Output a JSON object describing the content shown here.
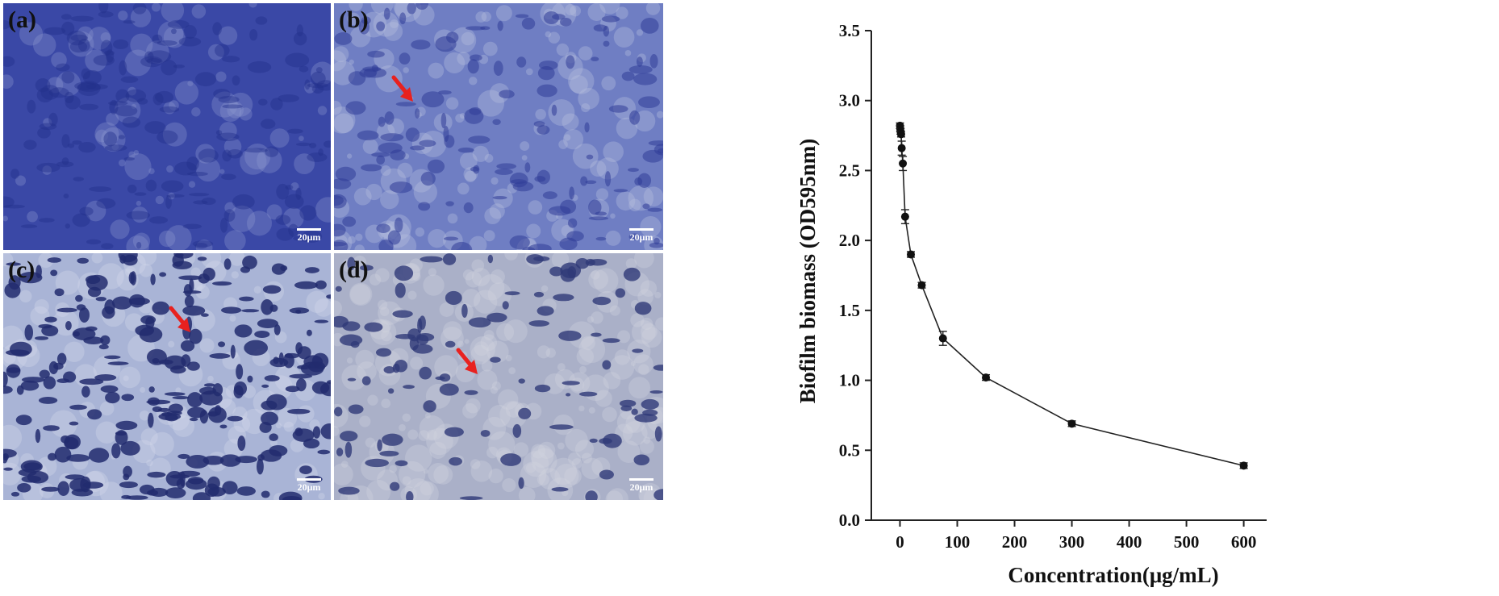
{
  "panels": [
    {
      "label": "(a)",
      "scale": "20μm",
      "base": "#3a48a6",
      "blob": "#24308c",
      "light": "#8c97cf",
      "arrow": false
    },
    {
      "label": "(b)",
      "scale": "20μm",
      "base": "#6f7ec3",
      "blob": "#2f3d98",
      "light": "#b9c2e0",
      "arrow": true
    },
    {
      "label": "(c)",
      "scale": "20μm",
      "base": "#a9b4d6",
      "blob": "#222c6e",
      "light": "#d4d9ea",
      "arrow": true
    },
    {
      "label": "(d)",
      "scale": "20μm",
      "base": "#aab0c8",
      "blob": "#2f3a78",
      "light": "#d0d3df",
      "arrow": true
    }
  ],
  "arrow_color": "#e8211f",
  "chart_data": {
    "type": "line",
    "xlabel": "Concentration(μg/mL)",
    "ylabel": "Biofilm biomass (OD595nm)",
    "xlim": [
      -50,
      640
    ],
    "ylim": [
      0.0,
      3.5
    ],
    "xticks": [
      0,
      100,
      200,
      300,
      400,
      500,
      600
    ],
    "yticks": [
      "0.0",
      "0.5",
      "1.0",
      "1.5",
      "2.0",
      "2.5",
      "3.0",
      "3.5"
    ],
    "series": [
      {
        "x": [
          0,
          0.5,
          1,
          2,
          3,
          5,
          9,
          19,
          38,
          75,
          150,
          300,
          600
        ],
        "y": [
          2.82,
          2.8,
          2.78,
          2.76,
          2.66,
          2.55,
          2.17,
          1.9,
          1.68,
          1.3,
          1.02,
          0.69,
          0.39
        ],
        "err": [
          0.02,
          0.02,
          0.02,
          0.02,
          0.05,
          0.05,
          0.05,
          0.02,
          0.02,
          0.05,
          0.02,
          0.02,
          0.02
        ]
      }
    ]
  }
}
